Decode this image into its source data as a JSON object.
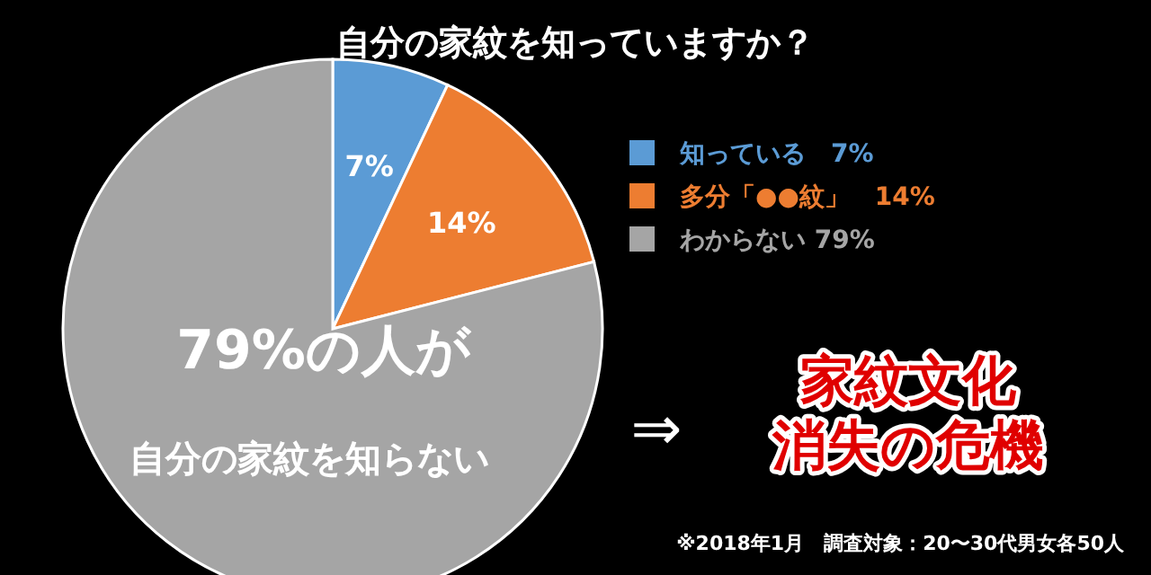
{
  "chart_data": {
    "type": "pie",
    "title": "自分の家紋を知っていますか？",
    "categories": [
      "知っている　7%",
      "多分「●●紋」　14%",
      "わからない 79%"
    ],
    "values": [
      7,
      14,
      79
    ],
    "colors": [
      "#5b9bd5",
      "#ed7d31",
      "#a5a5a5"
    ],
    "value_labels": [
      "7%",
      "14%",
      null
    ],
    "legend": "right",
    "annotations": [
      "79%の人が",
      "自分の家紋を知らない",
      "⇒",
      "家紋文化",
      "消失の危機",
      "※2018年1月　調査対象：20〜30代男女各50人"
    ]
  }
}
